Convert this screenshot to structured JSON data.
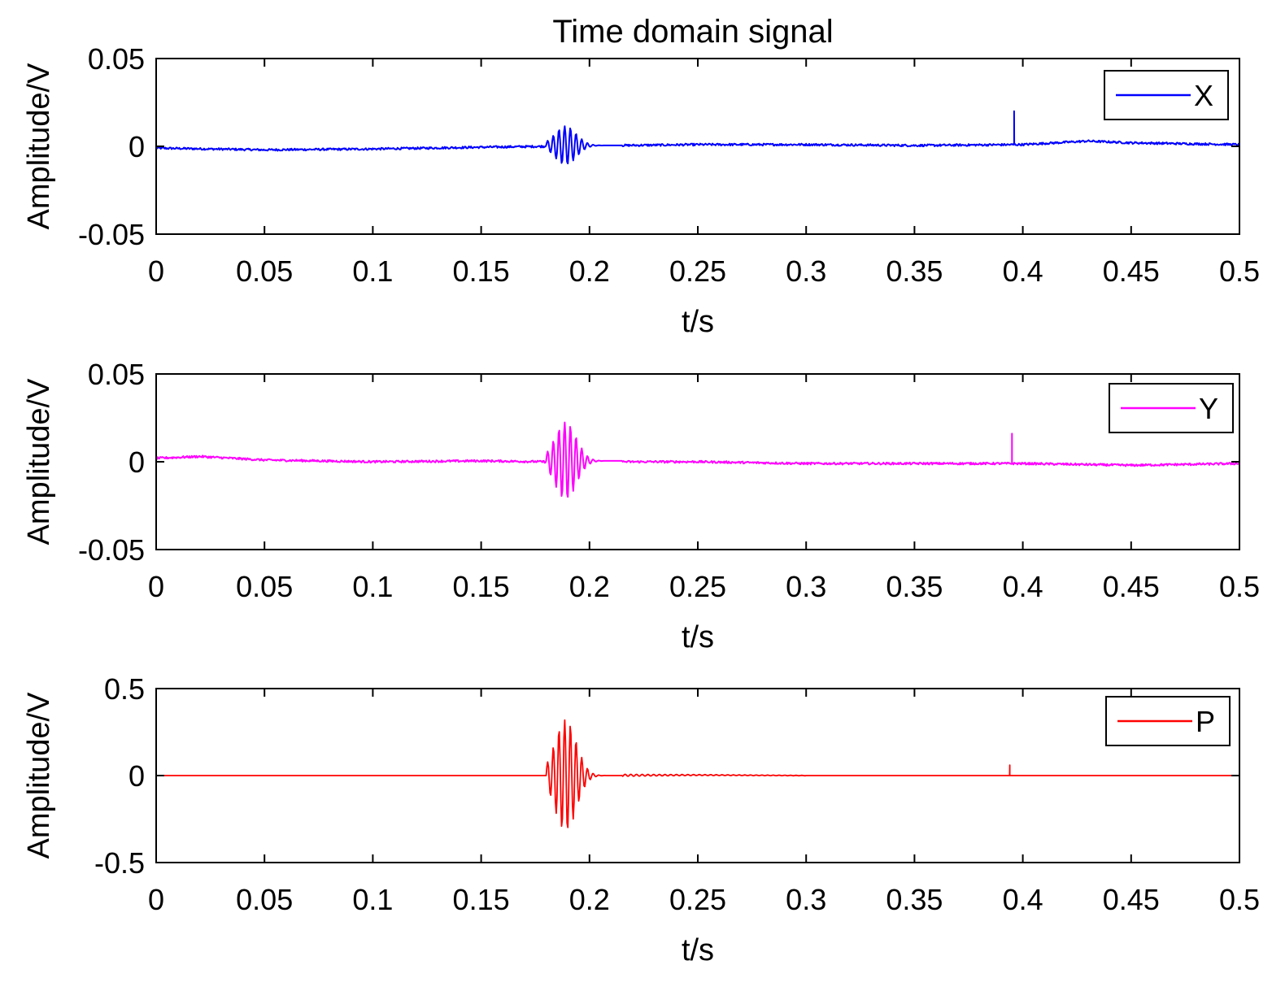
{
  "figure": {
    "title": "Time domain signal"
  },
  "chart_data": [
    {
      "type": "line",
      "xlabel": "t/s",
      "ylabel": "Amplitude/V",
      "xlim": [
        0,
        0.5
      ],
      "ylim": [
        -0.05,
        0.05
      ],
      "xticks": [
        0,
        0.05,
        0.1,
        0.15,
        0.2,
        0.25,
        0.3,
        0.35,
        0.4,
        0.45,
        0.5
      ],
      "xtick_labels": [
        "0",
        "0.05",
        "0.1",
        "0.15",
        "0.2",
        "0.25",
        "0.3",
        "0.35",
        "0.4",
        "0.45",
        "0.5"
      ],
      "yticks": [
        -0.05,
        0,
        0.05
      ],
      "ytick_labels": [
        "-0.05",
        "0",
        "0.05"
      ],
      "legend": "top-right",
      "grid": false,
      "series": [
        {
          "name": "X",
          "color": "#0000ff",
          "points": [
            [
              0,
              -0.001
            ],
            [
              0.05,
              -0.002
            ],
            [
              0.1,
              -0.0015
            ],
            [
              0.15,
              -0.0005
            ],
            [
              0.18,
              0.0
            ],
            [
              0.185,
              0.006
            ],
            [
              0.19,
              0.011
            ],
            [
              0.195,
              -0.011
            ],
            [
              0.2,
              0.003
            ],
            [
              0.205,
              0.0
            ],
            [
              0.25,
              0.001
            ],
            [
              0.3,
              0.001
            ],
            [
              0.35,
              0.0005
            ],
            [
              0.396,
              0.02
            ],
            [
              0.4,
              0.001
            ],
            [
              0.43,
              0.003
            ],
            [
              0.45,
              0.002
            ],
            [
              0.5,
              0.001
            ]
          ]
        }
      ]
    },
    {
      "type": "line",
      "xlabel": "t/s",
      "ylabel": "Amplitude/V",
      "xlim": [
        0,
        0.5
      ],
      "ylim": [
        -0.05,
        0.05
      ],
      "xticks": [
        0,
        0.05,
        0.1,
        0.15,
        0.2,
        0.25,
        0.3,
        0.35,
        0.4,
        0.45,
        0.5
      ],
      "xtick_labels": [
        "0",
        "0.05",
        "0.1",
        "0.15",
        "0.2",
        "0.25",
        "0.3",
        "0.35",
        "0.4",
        "0.45",
        "0.5"
      ],
      "yticks": [
        -0.05,
        0,
        0.05
      ],
      "ytick_labels": [
        "-0.05",
        "0",
        "0.05"
      ],
      "legend": "top-right",
      "grid": false,
      "series": [
        {
          "name": "Y",
          "color": "#ff00ff",
          "points": [
            [
              0,
              0.002
            ],
            [
              0.02,
              0.003
            ],
            [
              0.05,
              0.001
            ],
            [
              0.1,
              0.0
            ],
            [
              0.15,
              0.0005
            ],
            [
              0.18,
              0.0
            ],
            [
              0.185,
              0.015
            ],
            [
              0.19,
              0.018
            ],
            [
              0.195,
              -0.022
            ],
            [
              0.2,
              0.006
            ],
            [
              0.205,
              0.001
            ],
            [
              0.25,
              0.0
            ],
            [
              0.3,
              -0.001
            ],
            [
              0.35,
              -0.001
            ],
            [
              0.395,
              0.016
            ],
            [
              0.4,
              -0.001
            ],
            [
              0.45,
              -0.002
            ],
            [
              0.5,
              -0.001
            ]
          ]
        }
      ]
    },
    {
      "type": "line",
      "xlabel": "t/s",
      "ylabel": "Amplitude/V",
      "xlim": [
        0,
        0.5
      ],
      "ylim": [
        -0.5,
        0.5
      ],
      "xticks": [
        0,
        0.05,
        0.1,
        0.15,
        0.2,
        0.25,
        0.3,
        0.35,
        0.4,
        0.45,
        0.5
      ],
      "xtick_labels": [
        "0",
        "0.05",
        "0.1",
        "0.15",
        "0.2",
        "0.25",
        "0.3",
        "0.35",
        "0.4",
        "0.45",
        "0.5"
      ],
      "yticks": [
        -0.5,
        0,
        0.5
      ],
      "ytick_labels": [
        "-0.5",
        "0",
        "0.5"
      ],
      "legend": "top-right",
      "grid": false,
      "series": [
        {
          "name": "P",
          "color": "#ff0000",
          "points": [
            [
              0,
              0.0
            ],
            [
              0.18,
              0.0
            ],
            [
              0.185,
              0.3
            ],
            [
              0.188,
              0.32
            ],
            [
              0.19,
              -0.32
            ],
            [
              0.195,
              0.1
            ],
            [
              0.2,
              0.02
            ],
            [
              0.21,
              0.0
            ],
            [
              0.25,
              0.003
            ],
            [
              0.3,
              0.0
            ],
            [
              0.394,
              0.06
            ],
            [
              0.4,
              0.0
            ],
            [
              0.5,
              0.0
            ]
          ]
        }
      ]
    }
  ]
}
